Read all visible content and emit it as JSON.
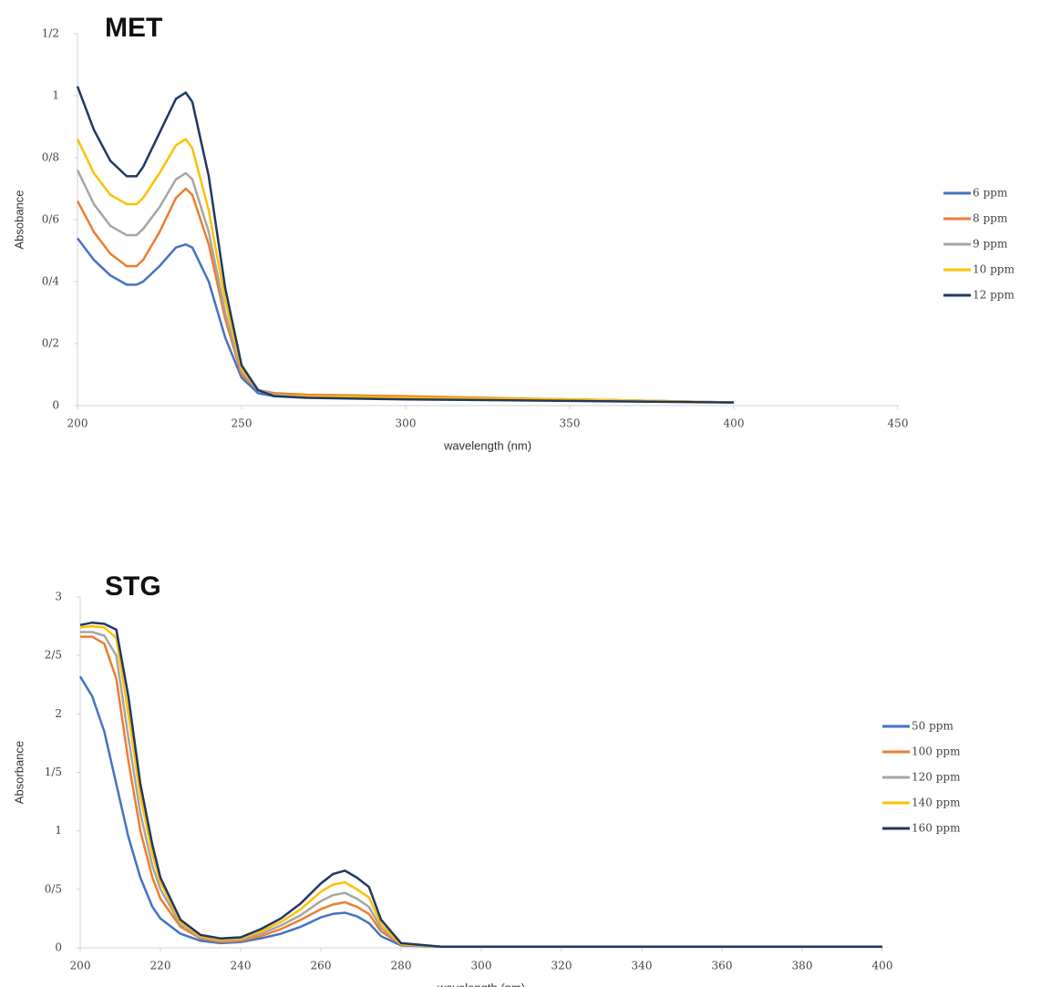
{
  "chart_data": [
    {
      "type": "line",
      "title": "MET",
      "x_label": "wavelength (nm)",
      "y_label": "Absobance",
      "xlim": [
        200,
        450
      ],
      "xticks": [
        200,
        250,
        300,
        350,
        400,
        450
      ],
      "ylim": [
        0,
        1.2
      ],
      "yticks": [
        0,
        {
          "value": 0.2,
          "label": "0/2"
        },
        {
          "value": 0.4,
          "label": "0/4"
        },
        {
          "value": 0.6,
          "label": "0/6"
        },
        {
          "value": 0.8,
          "label": "0/8"
        },
        1,
        {
          "value": 1.2,
          "label": "1/2"
        }
      ],
      "grid": false,
      "legend": "right",
      "x": [
        200,
        205,
        210,
        215,
        218,
        220,
        225,
        230,
        233,
        235,
        240,
        245,
        250,
        255,
        260,
        270,
        300,
        350,
        400
      ],
      "series": [
        {
          "name": "6 ppm",
          "color": "#4472c4",
          "values": [
            0.54,
            0.47,
            0.42,
            0.39,
            0.39,
            0.4,
            0.45,
            0.51,
            0.52,
            0.51,
            0.4,
            0.22,
            0.09,
            0.04,
            0.03,
            0.03,
            0.025,
            0.02,
            0.01
          ]
        },
        {
          "name": "8 ppm",
          "color": "#ed7d31",
          "values": [
            0.66,
            0.56,
            0.49,
            0.45,
            0.45,
            0.47,
            0.56,
            0.67,
            0.7,
            0.68,
            0.52,
            0.28,
            0.1,
            0.05,
            0.04,
            0.035,
            0.03,
            0.02,
            0.01
          ]
        },
        {
          "name": "9 ppm",
          "color": "#a5a5a5",
          "values": [
            0.76,
            0.65,
            0.58,
            0.55,
            0.55,
            0.57,
            0.64,
            0.73,
            0.75,
            0.73,
            0.56,
            0.3,
            0.11,
            0.05,
            0.035,
            0.03,
            0.025,
            0.02,
            0.01
          ]
        },
        {
          "name": "10 ppm",
          "color": "#ffc000",
          "values": [
            0.86,
            0.75,
            0.68,
            0.65,
            0.65,
            0.67,
            0.75,
            0.84,
            0.86,
            0.83,
            0.63,
            0.34,
            0.12,
            0.05,
            0.03,
            0.03,
            0.025,
            0.02,
            0.01
          ]
        },
        {
          "name": "12 ppm",
          "color": "#1f3864",
          "values": [
            1.03,
            0.89,
            0.79,
            0.74,
            0.74,
            0.77,
            0.88,
            0.99,
            1.01,
            0.98,
            0.74,
            0.38,
            0.13,
            0.05,
            0.03,
            0.025,
            0.02,
            0.015,
            0.01
          ]
        }
      ]
    },
    {
      "type": "line",
      "title": "STG",
      "x_label": "wavelength (nm)",
      "y_label": "Absorbance",
      "xlim": [
        200,
        400
      ],
      "xticks": [
        200,
        220,
        240,
        260,
        280,
        300,
        320,
        340,
        360,
        380,
        400
      ],
      "ylim": [
        0,
        3
      ],
      "yticks": [
        0,
        {
          "value": 0.5,
          "label": "0/5"
        },
        1,
        {
          "value": 1.5,
          "label": "1/5"
        },
        2,
        {
          "value": 2.5,
          "label": "2/5"
        },
        3
      ],
      "grid": false,
      "legend": "right",
      "x": [
        200,
        203,
        206,
        209,
        212,
        215,
        218,
        220,
        225,
        230,
        235,
        240,
        245,
        250,
        255,
        260,
        263,
        266,
        269,
        272,
        275,
        280,
        290,
        300,
        350,
        400
      ],
      "series": [
        {
          "name": "50 ppm",
          "color": "#4472c4",
          "values": [
            2.32,
            2.15,
            1.85,
            1.4,
            0.95,
            0.6,
            0.35,
            0.25,
            0.12,
            0.06,
            0.04,
            0.05,
            0.08,
            0.12,
            0.18,
            0.26,
            0.29,
            0.3,
            0.27,
            0.21,
            0.1,
            0.02,
            0.01,
            0.01,
            0.01,
            0.01
          ]
        },
        {
          "name": "100 ppm",
          "color": "#ed7d31",
          "values": [
            2.66,
            2.66,
            2.6,
            2.3,
            1.6,
            1.0,
            0.6,
            0.42,
            0.18,
            0.08,
            0.05,
            0.06,
            0.1,
            0.16,
            0.24,
            0.33,
            0.37,
            0.39,
            0.35,
            0.29,
            0.14,
            0.03,
            0.01,
            0.01,
            0.01,
            0.01
          ]
        },
        {
          "name": "120 ppm",
          "color": "#a5a5a5",
          "values": [
            2.7,
            2.7,
            2.67,
            2.5,
            1.8,
            1.15,
            0.7,
            0.5,
            0.2,
            0.09,
            0.06,
            0.07,
            0.12,
            0.19,
            0.28,
            0.4,
            0.45,
            0.47,
            0.42,
            0.35,
            0.17,
            0.03,
            0.01,
            0.01,
            0.01,
            0.01
          ]
        },
        {
          "name": "140 ppm",
          "color": "#ffc000",
          "values": [
            2.74,
            2.75,
            2.74,
            2.65,
            2.0,
            1.3,
            0.8,
            0.56,
            0.22,
            0.1,
            0.07,
            0.08,
            0.14,
            0.22,
            0.33,
            0.48,
            0.54,
            0.56,
            0.5,
            0.43,
            0.2,
            0.03,
            0.01,
            0.01,
            0.01,
            0.01
          ]
        },
        {
          "name": "160 ppm",
          "color": "#1f3864",
          "values": [
            2.76,
            2.78,
            2.77,
            2.72,
            2.15,
            1.4,
            0.88,
            0.6,
            0.24,
            0.11,
            0.08,
            0.09,
            0.16,
            0.25,
            0.38,
            0.55,
            0.63,
            0.66,
            0.6,
            0.52,
            0.24,
            0.04,
            0.01,
            0.01,
            0.01,
            0.01
          ]
        }
      ]
    }
  ]
}
